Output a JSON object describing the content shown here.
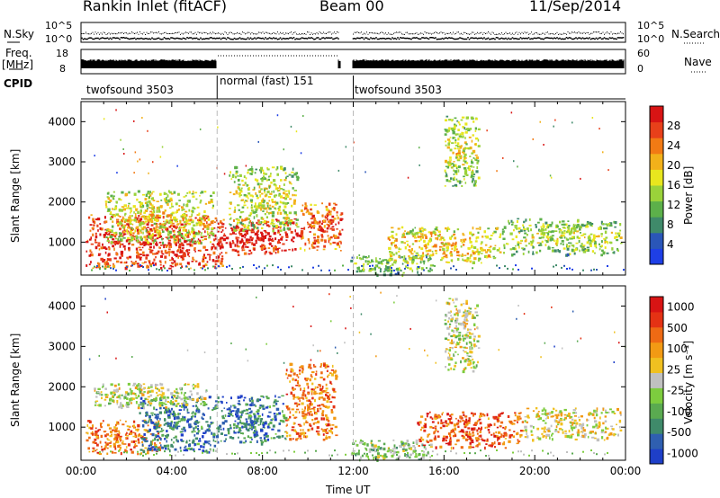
{
  "header": {
    "station": "Rankin Inlet (fitACF)",
    "beam": "Beam 00",
    "date": "11/Sep/2014"
  },
  "status_panel": {
    "nsky_label": "N.Sky",
    "nsky_tick_hi": "10^5",
    "nsky_tick_lo": "10^0",
    "nsearch_label": "N.Search",
    "nsearch_tick_hi": "10^5",
    "nsearch_tick_lo": "10^0",
    "freq_label": "Freq.",
    "freq_unit": "[MHz]",
    "freq_ticks": [
      "18",
      "8"
    ],
    "nave_label": "Nave",
    "nave_ticks": [
      "60",
      "0"
    ],
    "cpid_label": "CPID",
    "cpid_segments": [
      {
        "label": "twofsound 3503",
        "start_hour": 0,
        "end_hour": 6
      },
      {
        "label": "normal (fast) 151",
        "start_hour": 6,
        "end_hour": 12
      },
      {
        "label": "twofsound 3503",
        "start_hour": 12,
        "end_hour": 24
      }
    ]
  },
  "chart_data": [
    {
      "type": "heatmap",
      "title": "",
      "xlabel": "",
      "ylabel": "Slant Range [km]",
      "xlim": [
        0,
        24
      ],
      "ylim": [
        180,
        4500
      ],
      "yticks": [
        1000,
        2000,
        3000,
        4000
      ],
      "colorbar": {
        "label": "Power [dB]",
        "ticks": [
          "4",
          "8",
          "12",
          "16",
          "20",
          "24",
          "28"
        ],
        "colors": [
          "#1e3fe6",
          "#2a56b8",
          "#3f8a6a",
          "#5cb04a",
          "#9ad23a",
          "#e8e61e",
          "#f2b11a",
          "#f27a14",
          "#e8401a",
          "#d81414"
        ]
      },
      "regions": [
        {
          "x0": 0.2,
          "x1": 6.2,
          "r0": 350,
          "r1": 1700,
          "level": 0.8
        },
        {
          "x0": 1.0,
          "x1": 5.8,
          "r0": 1000,
          "r1": 2300,
          "level": 0.45
        },
        {
          "x0": 6.0,
          "x1": 9.6,
          "r0": 700,
          "r1": 1600,
          "level": 0.85
        },
        {
          "x0": 6.5,
          "x1": 9.5,
          "r0": 1300,
          "r1": 2900,
          "level": 0.4
        },
        {
          "x0": 9.6,
          "x1": 11.5,
          "r0": 800,
          "r1": 2000,
          "level": 0.7
        },
        {
          "x0": 11.8,
          "x1": 15.5,
          "r0": 200,
          "r1": 700,
          "level": 0.3
        },
        {
          "x0": 13.5,
          "x1": 18.5,
          "r0": 500,
          "r1": 1400,
          "level": 0.5
        },
        {
          "x0": 18.5,
          "x1": 23.8,
          "r0": 700,
          "r1": 1600,
          "level": 0.35
        },
        {
          "x0": 16.0,
          "x1": 17.5,
          "r0": 2400,
          "r1": 4200,
          "level": 0.4
        }
      ]
    },
    {
      "type": "heatmap",
      "title": "",
      "xlabel": "Time UT",
      "ylabel": "Slant Range [km]",
      "xlim": [
        0,
        24
      ],
      "ylim": [
        180,
        4500
      ],
      "xticks": [
        "00:00",
        "04:00",
        "08:00",
        "12:00",
        "16:00",
        "20:00",
        "00:00"
      ],
      "yticks": [
        1000,
        2000,
        3000,
        4000
      ],
      "colorbar": {
        "label": "Velocity [m s⁻¹]",
        "ticks": [
          "1000",
          "500",
          "100",
          "25",
          "-25",
          "-100",
          "-500",
          "-1000"
        ],
        "colors": [
          "#1e3fc8",
          "#2f5fb0",
          "#3f8a6a",
          "#5aaa50",
          "#7dcc3e",
          "#c0c0c0",
          "#f0c020",
          "#f29a14",
          "#ee6a14",
          "#e43214",
          "#d81414"
        ]
      },
      "regions": [
        {
          "x0": 0.2,
          "x1": 3.5,
          "r0": 350,
          "r1": 1200,
          "level": 0.75
        },
        {
          "x0": 2.5,
          "x1": 6.0,
          "r0": 400,
          "r1": 1800,
          "level": 0.2
        },
        {
          "x0": 0.5,
          "x1": 5.5,
          "r0": 1500,
          "r1": 2100,
          "level": 0.5
        },
        {
          "x0": 6.0,
          "x1": 9.0,
          "r0": 600,
          "r1": 1800,
          "level": 0.2
        },
        {
          "x0": 9.0,
          "x1": 11.2,
          "r0": 700,
          "r1": 2600,
          "level": 0.75
        },
        {
          "x0": 11.8,
          "x1": 15.5,
          "r0": 200,
          "r1": 700,
          "level": 0.4
        },
        {
          "x0": 14.8,
          "x1": 19.5,
          "r0": 500,
          "r1": 1400,
          "level": 0.8
        },
        {
          "x0": 19.5,
          "x1": 23.8,
          "r0": 700,
          "r1": 1500,
          "level": 0.55
        },
        {
          "x0": 16.0,
          "x1": 17.5,
          "r0": 2400,
          "r1": 4200,
          "level": 0.5
        }
      ]
    }
  ]
}
